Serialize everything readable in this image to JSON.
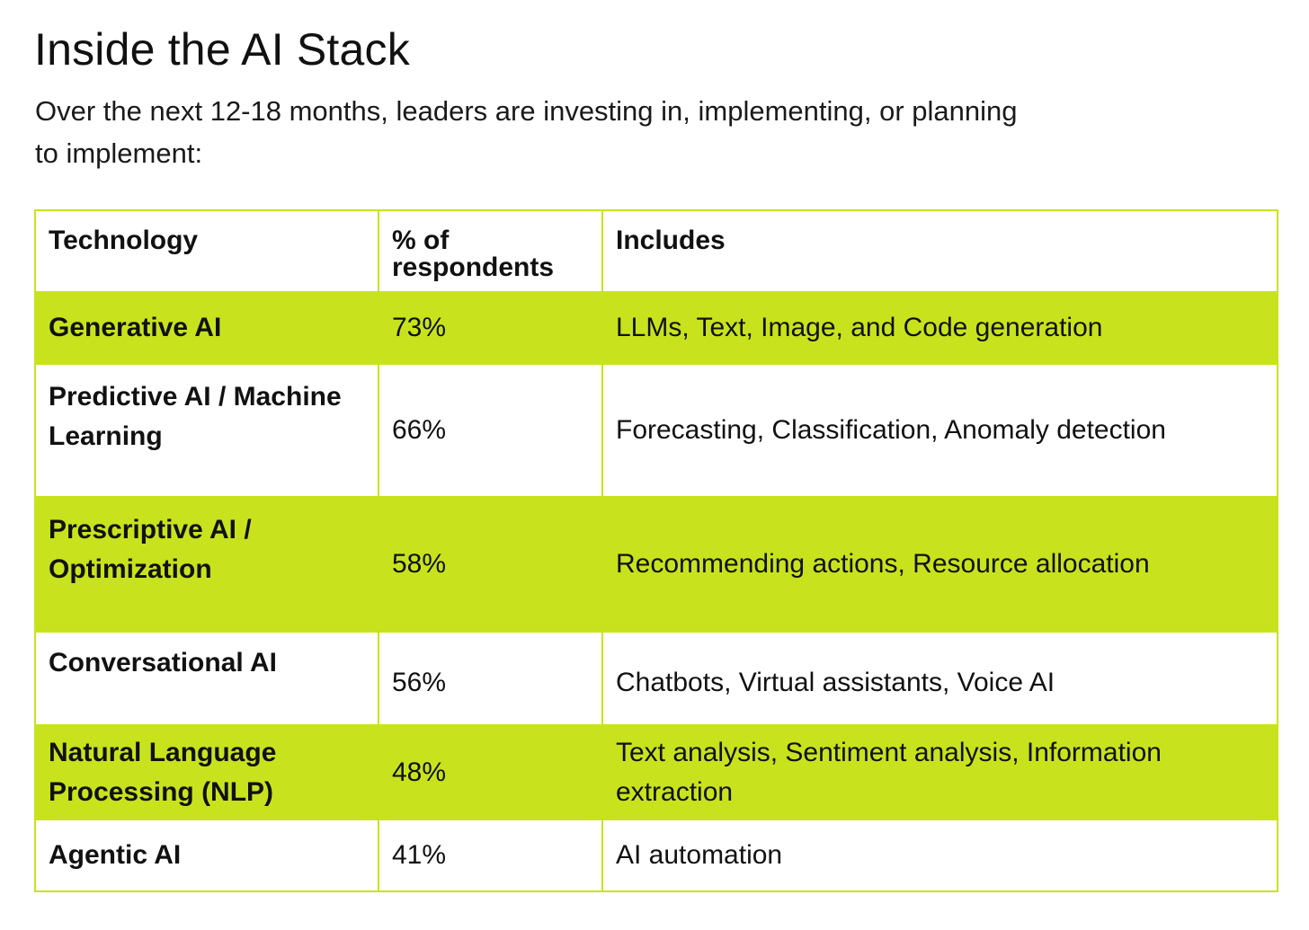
{
  "title": "Inside the AI Stack",
  "subtitle": "Over the next 12-18 months, leaders are investing in, implementing, or planning to implement:",
  "accent_color": "#c8e31d",
  "table": {
    "headers": {
      "technology": "Technology",
      "percent": "% of respondents",
      "includes": "Includes"
    },
    "rows": [
      {
        "technology": "Generative AI",
        "percent": "73%",
        "includes": "LLMs, Text, Image, and Code generation",
        "highlighted": true
      },
      {
        "technology": "Predictive AI / Machine Learning",
        "percent": "66%",
        "includes": "Forecasting, Classification, Anomaly detection",
        "highlighted": false
      },
      {
        "technology": "Prescriptive AI / Optimization",
        "percent": "58%",
        "includes": "Recommending actions, Resource allocation",
        "highlighted": true
      },
      {
        "technology": "Conversational AI",
        "percent": "56%",
        "includes": "Chatbots, Virtual assistants, Voice AI",
        "highlighted": false
      },
      {
        "technology": "Natural Language Processing (NLP)",
        "percent": "48%",
        "includes": "Text analysis, Sentiment analysis, Information extraction",
        "highlighted": true
      },
      {
        "technology": "Agentic AI",
        "percent": "41%",
        "includes": "AI automation",
        "highlighted": false
      }
    ]
  }
}
